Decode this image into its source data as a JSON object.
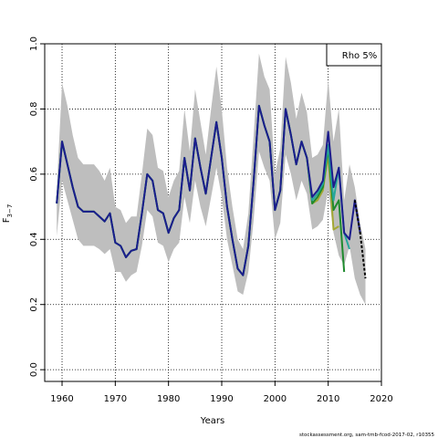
{
  "chart_data": {
    "type": "line",
    "xlabel": "Years",
    "ylabel": {
      "text": "F",
      "subscript": "3−7"
    },
    "annotation": "Rho 5%",
    "footer": "stockassessment.org, sam-tmb-fcod-2017-02, r10355",
    "xlim": [
      1956.74,
      2020
    ],
    "ylim": [
      -0.036,
      1.0
    ],
    "xticks": [
      1960,
      1970,
      1980,
      1990,
      2000,
      2010,
      2020
    ],
    "yticks": [
      {
        "value": 0,
        "label": "0.0"
      },
      0.2,
      0.4,
      0.6,
      0.8,
      {
        "value": 1,
        "label": "1.0"
      }
    ],
    "grid": true,
    "x": [
      1959,
      1960,
      1961,
      1962,
      1963,
      1964,
      1965,
      1966,
      1967,
      1968,
      1969,
      1970,
      1971,
      1972,
      1973,
      1974,
      1975,
      1976,
      1977,
      1978,
      1979,
      1980,
      1981,
      1982,
      1983,
      1984,
      1985,
      1986,
      1987,
      1988,
      1989,
      1990,
      1991,
      1992,
      1993,
      1994,
      1995,
      1996,
      1997,
      1998,
      1999,
      2000,
      2001,
      2002,
      2003,
      2004,
      2005,
      2006,
      2007,
      2008,
      2009,
      2010,
      2011,
      2012,
      2013,
      2014,
      2015,
      2016,
      2017
    ],
    "band": {
      "color": "#bebebe",
      "lower": [
        0.41,
        0.58,
        0.52,
        0.46,
        0.4,
        0.38,
        0.38,
        0.38,
        0.37,
        0.355,
        0.37,
        0.3,
        0.3,
        0.27,
        0.29,
        0.3,
        0.38,
        0.49,
        0.47,
        0.39,
        0.38,
        0.33,
        0.37,
        0.39,
        0.53,
        0.45,
        0.58,
        0.5,
        0.44,
        0.53,
        0.62,
        0.53,
        0.4,
        0.32,
        0.24,
        0.23,
        0.3,
        0.46,
        0.67,
        0.62,
        0.58,
        0.4,
        0.45,
        0.66,
        0.6,
        0.52,
        0.58,
        0.54,
        0.43,
        0.44,
        0.46,
        0.55,
        0.42,
        0.35,
        0.32,
        0.38,
        0.28,
        0.23,
        0.2
      ],
      "upper": [
        0.55,
        0.88,
        0.81,
        0.72,
        0.65,
        0.63,
        0.63,
        0.63,
        0.61,
        0.58,
        0.62,
        0.5,
        0.49,
        0.45,
        0.47,
        0.47,
        0.6,
        0.74,
        0.72,
        0.62,
        0.61,
        0.53,
        0.58,
        0.61,
        0.8,
        0.67,
        0.86,
        0.76,
        0.66,
        0.8,
        0.93,
        0.8,
        0.62,
        0.5,
        0.4,
        0.37,
        0.48,
        0.72,
        0.97,
        0.9,
        0.86,
        0.6,
        0.68,
        0.96,
        0.88,
        0.77,
        0.85,
        0.79,
        0.65,
        0.66,
        0.69,
        0.89,
        0.7,
        0.8,
        0.52,
        0.63,
        0.56,
        0.45,
        0.37
      ]
    },
    "series": [
      {
        "color": "#a3a834",
        "dash": false,
        "values": [
          0.51,
          0.7,
          0.63,
          0.56,
          0.5,
          0.485,
          0.485,
          0.485,
          0.47,
          0.455,
          0.48,
          0.39,
          0.38,
          0.345,
          0.365,
          0.37,
          0.48,
          0.6,
          0.58,
          0.49,
          0.48,
          0.42,
          0.465,
          0.49,
          0.65,
          0.55,
          0.71,
          0.62,
          0.54,
          0.65,
          0.76,
          0.65,
          0.5,
          0.4,
          0.31,
          0.29,
          0.38,
          0.58,
          0.81,
          0.75,
          0.7,
          0.49,
          0.55,
          0.8,
          0.72,
          0.63,
          0.7,
          0.65,
          0.51,
          0.52,
          0.55,
          0.66,
          0.43,
          0.44,
          null,
          null,
          null,
          null,
          null
        ]
      },
      {
        "color": "#1f8a2e",
        "dash": false,
        "values": [
          0.51,
          0.7,
          0.63,
          0.56,
          0.5,
          0.485,
          0.485,
          0.485,
          0.47,
          0.455,
          0.48,
          0.39,
          0.38,
          0.345,
          0.365,
          0.37,
          0.48,
          0.6,
          0.58,
          0.49,
          0.48,
          0.42,
          0.465,
          0.49,
          0.65,
          0.55,
          0.71,
          0.62,
          0.54,
          0.65,
          0.76,
          0.65,
          0.5,
          0.4,
          0.31,
          0.29,
          0.38,
          0.58,
          0.81,
          0.75,
          0.7,
          0.49,
          0.55,
          0.8,
          0.72,
          0.63,
          0.7,
          0.65,
          0.51,
          0.53,
          0.56,
          0.68,
          0.49,
          0.52,
          0.3,
          null,
          null,
          null,
          null
        ]
      },
      {
        "color": "#26a69a",
        "dash": false,
        "values": [
          0.51,
          0.7,
          0.63,
          0.56,
          0.5,
          0.485,
          0.485,
          0.485,
          0.47,
          0.455,
          0.48,
          0.39,
          0.38,
          0.345,
          0.365,
          0.37,
          0.48,
          0.6,
          0.58,
          0.49,
          0.48,
          0.42,
          0.465,
          0.49,
          0.65,
          0.55,
          0.71,
          0.62,
          0.54,
          0.65,
          0.76,
          0.65,
          0.5,
          0.4,
          0.31,
          0.29,
          0.38,
          0.58,
          0.81,
          0.75,
          0.7,
          0.49,
          0.55,
          0.8,
          0.72,
          0.63,
          0.7,
          0.65,
          0.52,
          0.54,
          0.57,
          0.69,
          0.52,
          0.62,
          0.42,
          0.37,
          null,
          null,
          null
        ]
      },
      {
        "color": "#1c1c8c",
        "dash": false,
        "values": [
          0.51,
          0.7,
          0.63,
          0.56,
          0.5,
          0.485,
          0.485,
          0.485,
          0.47,
          0.455,
          0.48,
          0.39,
          0.38,
          0.345,
          0.365,
          0.37,
          0.48,
          0.6,
          0.58,
          0.49,
          0.48,
          0.42,
          0.465,
          0.49,
          0.65,
          0.55,
          0.71,
          0.62,
          0.54,
          0.65,
          0.76,
          0.65,
          0.5,
          0.4,
          0.31,
          0.29,
          0.38,
          0.58,
          0.81,
          0.75,
          0.7,
          0.49,
          0.55,
          0.8,
          0.72,
          0.63,
          0.7,
          0.65,
          0.53,
          0.55,
          0.58,
          0.73,
          0.56,
          0.62,
          0.42,
          0.4,
          0.52,
          0.42,
          null
        ]
      },
      {
        "color": "#000000",
        "dash": true,
        "values": [
          null,
          null,
          null,
          null,
          null,
          null,
          null,
          null,
          null,
          null,
          null,
          null,
          null,
          null,
          null,
          null,
          null,
          null,
          null,
          null,
          null,
          null,
          null,
          null,
          null,
          null,
          null,
          null,
          null,
          null,
          null,
          null,
          null,
          null,
          null,
          null,
          null,
          null,
          null,
          null,
          null,
          null,
          null,
          null,
          null,
          null,
          null,
          null,
          null,
          null,
          null,
          null,
          null,
          null,
          null,
          null,
          0.52,
          0.42,
          0.28
        ]
      }
    ]
  }
}
